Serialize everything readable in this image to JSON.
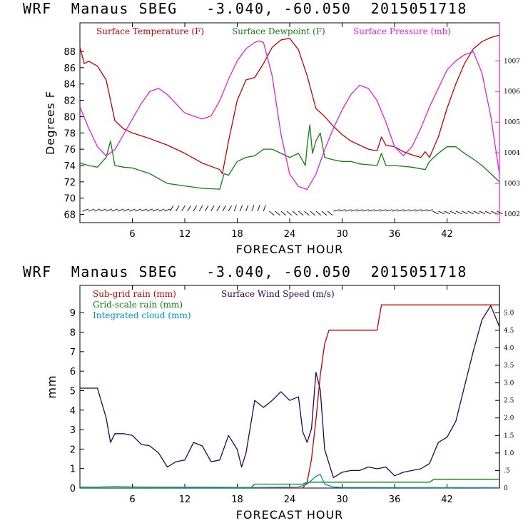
{
  "panels": [
    {
      "title": "WRF  Manaus SBEG   -3.040, -60.050  2015051718"
    },
    {
      "title": "WRF  Manaus SBEG   -3.040, -60.050  2015051718"
    }
  ],
  "chart_data": [
    {
      "type": "line",
      "title": "WRF  Manaus SBEG   -3.040, -60.050  2015051718",
      "xlabel": "FORECAST HOUR",
      "ylabel": "Degrees F",
      "xlim": [
        0,
        48
      ],
      "xticks": [
        6,
        12,
        18,
        24,
        30,
        36,
        42
      ],
      "ylim": [
        67,
        91.5
      ],
      "yticks": [
        68,
        70,
        72,
        74,
        76,
        78,
        80,
        82,
        84,
        86,
        88
      ],
      "y2lim": [
        1001.72,
        1008.24
      ],
      "y2ticks": [
        1002,
        1003,
        1004,
        1005,
        1006,
        1007
      ],
      "grid": false,
      "legend_placement": "top",
      "series": [
        {
          "name": "Surface Temperature (F)",
          "axis": "left",
          "color": "#c00000",
          "x": [
            0,
            0.5,
            1,
            2,
            3,
            3.5,
            4,
            5,
            6,
            8,
            10,
            12,
            14,
            16,
            16.3,
            17,
            18,
            19,
            20,
            21,
            22,
            23,
            24,
            25,
            26,
            27,
            28,
            29,
            30,
            31,
            32,
            33,
            34,
            34.5,
            35,
            36,
            37,
            38,
            39,
            39.5,
            40,
            41,
            42,
            43,
            44,
            45,
            46,
            47,
            48
          ],
          "y": [
            88.5,
            86.5,
            86.8,
            86.2,
            84.5,
            82,
            79.5,
            78.5,
            78,
            77.3,
            76.5,
            75.5,
            74.3,
            73.5,
            73,
            77,
            82,
            84.5,
            84.8,
            86.5,
            88.5,
            89.4,
            89.6,
            88.2,
            85,
            81,
            80,
            78.8,
            77.8,
            77,
            76.5,
            76,
            75.8,
            77.5,
            76.5,
            76.3,
            75.7,
            75.3,
            75,
            75.7,
            75,
            77.5,
            81,
            84,
            86.5,
            88.3,
            89.2,
            89.7,
            90
          ]
        },
        {
          "name": "Surface Dewpoint (F)",
          "axis": "left",
          "color": "#108010",
          "x": [
            0,
            1,
            2,
            3,
            3.5,
            4,
            5,
            6,
            8,
            10,
            12,
            14,
            16,
            16.5,
            17,
            18,
            19,
            20,
            21,
            22,
            23,
            24,
            25,
            25.8,
            26,
            26.3,
            26.6,
            27,
            27.5,
            28,
            29,
            30,
            31,
            32,
            33,
            34,
            34.5,
            35,
            36,
            38,
            39.5,
            40,
            41,
            42,
            43,
            44,
            45,
            46,
            47,
            48
          ],
          "y": [
            74.3,
            74,
            73.8,
            75,
            77,
            74,
            73.8,
            73.7,
            73,
            71.8,
            71.5,
            71.2,
            71.1,
            73,
            72.8,
            74.5,
            75,
            75.2,
            76,
            76,
            75.5,
            75,
            75.5,
            74,
            76.5,
            79,
            75.5,
            77,
            78,
            75,
            74.7,
            74.5,
            74.5,
            74.2,
            74.1,
            74,
            75.5,
            74,
            74,
            73.8,
            73.5,
            74.5,
            75.5,
            76.3,
            76.3,
            75.5,
            74.8,
            74,
            73,
            72
          ]
        },
        {
          "name": "Surface Pressure (mb)",
          "axis": "right",
          "color": "#e020e0",
          "x": [
            0,
            1,
            2,
            3,
            4,
            5,
            6,
            7,
            8,
            9,
            10,
            11,
            12,
            13,
            14,
            15,
            16,
            17,
            18,
            19,
            20,
            20.5,
            21,
            22,
            23,
            24,
            25,
            26,
            27,
            28,
            29,
            30,
            31,
            32,
            33,
            34,
            35,
            36,
            37,
            38,
            39,
            40,
            41,
            42,
            43,
            44,
            45,
            46,
            47,
            48
          ],
          "y": [
            1005.5,
            1004.8,
            1004.2,
            1003.9,
            1004.1,
            1004.6,
            1005.1,
            1005.6,
            1006.0,
            1006.1,
            1005.9,
            1005.6,
            1005.3,
            1005.2,
            1005.1,
            1005.2,
            1005.7,
            1006.4,
            1007.0,
            1007.4,
            1007.6,
            1007.65,
            1007.6,
            1006.5,
            1004.6,
            1003.3,
            1002.9,
            1002.8,
            1003.3,
            1004.1,
            1004.8,
            1005.4,
            1005.9,
            1006.2,
            1006.1,
            1005.7,
            1005.0,
            1004.2,
            1003.9,
            1004.2,
            1004.8,
            1005.5,
            1006.1,
            1006.7,
            1007.0,
            1007.2,
            1007.3,
            1006.6,
            1005.2,
            1003.3
          ]
        }
      ]
    },
    {
      "type": "line",
      "title": "WRF  Manaus SBEG   -3.040, -60.050  2015051718",
      "xlabel": "FORECAST HOUR",
      "ylabel": "mm",
      "xlim": [
        0,
        48
      ],
      "xticks": [
        6,
        12,
        18,
        24,
        30,
        36,
        42
      ],
      "ylim": [
        0,
        10.4
      ],
      "yticks": [
        0,
        1,
        2,
        3,
        4,
        5,
        6,
        7,
        8,
        9
      ],
      "y2lim": [
        0,
        5.78
      ],
      "y2ticks": [
        0,
        0.5,
        1.0,
        1.5,
        2.0,
        2.5,
        3.0,
        3.5,
        4.0,
        4.5,
        5.0
      ],
      "y2ticklabels": [
        "0",
        ".5",
        "1.0",
        "1.5",
        "2.0",
        "2.5",
        "3.0",
        "3.5",
        "4.0",
        "4.5",
        "5.0"
      ],
      "grid": false,
      "legend_placement": "top-left",
      "series": [
        {
          "name": "Sub-grid rain (mm)",
          "axis": "left",
          "color": "#c00000",
          "x": [
            0,
            25.5,
            26,
            26.5,
            27,
            27.5,
            28,
            28.5,
            29,
            34,
            34.5,
            35,
            48
          ],
          "y": [
            0,
            0,
            0.3,
            1.5,
            3.5,
            5.8,
            7.4,
            8.1,
            8.1,
            8.1,
            9.4,
            9.4,
            9.4
          ]
        },
        {
          "name": "Surface Wind Speed (m/s)",
          "axis": "right",
          "color": "#300050",
          "x": [
            0,
            1,
            2,
            3,
            3.5,
            4,
            5,
            6,
            7,
            8,
            9,
            10,
            11,
            12,
            13,
            14,
            15,
            16,
            17,
            18,
            18.5,
            19,
            20,
            21,
            22,
            23,
            24,
            25,
            25.5,
            26,
            26.5,
            27,
            27.5,
            28,
            29,
            30,
            31,
            32,
            33,
            34,
            35,
            36,
            37,
            38,
            39,
            40,
            41,
            42,
            43,
            44,
            45,
            46,
            47,
            48
          ],
          "y": [
            2.85,
            2.85,
            2.85,
            2.0,
            1.3,
            1.55,
            1.55,
            1.5,
            1.25,
            1.2,
            1.0,
            0.6,
            0.75,
            0.8,
            1.3,
            1.2,
            0.75,
            0.8,
            1.5,
            1.1,
            0.6,
            1.0,
            2.5,
            2.3,
            2.5,
            2.75,
            2.5,
            2.6,
            1.6,
            1.3,
            1.7,
            3.3,
            2.8,
            1.1,
            0.3,
            0.45,
            0.5,
            0.5,
            0.6,
            0.55,
            0.6,
            0.35,
            0.45,
            0.5,
            0.55,
            0.7,
            1.3,
            1.45,
            1.9,
            2.9,
            3.9,
            4.8,
            5.2,
            4.6
          ]
        },
        {
          "name": "Grid-scale rain (mm)",
          "axis": "left",
          "color": "#108010",
          "x": [
            0,
            19.5,
            20,
            25.5,
            26,
            40,
            40.5,
            48
          ],
          "y": [
            0,
            0,
            0.2,
            0.2,
            0.3,
            0.3,
            0.45,
            0.45
          ]
        },
        {
          "name": "Integrated cloud (mm)",
          "axis": "left",
          "color": "#0090c0",
          "x": [
            0,
            2,
            4,
            6,
            8,
            20,
            25,
            26,
            27,
            27.5,
            28,
            29,
            30,
            48
          ],
          "y": [
            0.05,
            0.05,
            0.08,
            0.06,
            0.05,
            0.03,
            0.05,
            0.2,
            0.6,
            0.7,
            0.2,
            0.05,
            0.03,
            0.02
          ]
        }
      ]
    }
  ]
}
